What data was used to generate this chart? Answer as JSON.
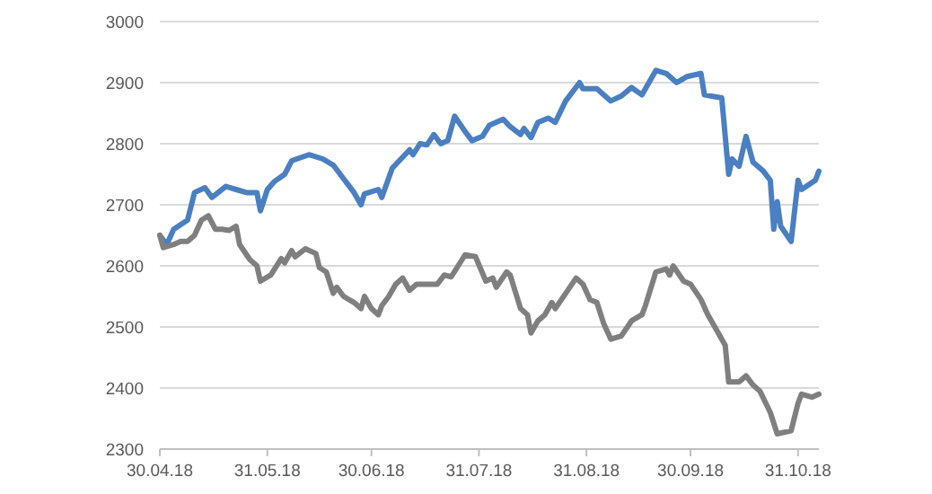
{
  "chart_data": {
    "type": "line",
    "xlim": [
      "2018-04-30",
      "2018-11-06"
    ],
    "xticks": [
      {
        "value": "2018-04-30",
        "label": "30.04.18"
      },
      {
        "value": "2018-05-31",
        "label": "31.05.18"
      },
      {
        "value": "2018-06-30",
        "label": "30.06.18"
      },
      {
        "value": "2018-07-31",
        "label": "31.07.18"
      },
      {
        "value": "2018-08-31",
        "label": "31.08.18"
      },
      {
        "value": "2018-09-30",
        "label": "30.09.18"
      },
      {
        "value": "2018-10-31",
        "label": "31.10.18"
      }
    ],
    "ylim": [
      2300,
      3000
    ],
    "yticks": [
      2300,
      2400,
      2500,
      2600,
      2700,
      2800,
      2900,
      3000
    ],
    "grid": "y",
    "series": [
      {
        "color": "#4a7fc1",
        "x": [
          "2018-04-30",
          "2018-05-02",
          "2018-05-04",
          "2018-05-08",
          "2018-05-10",
          "2018-05-13",
          "2018-05-15",
          "2018-05-19",
          "2018-05-22",
          "2018-05-25",
          "2018-05-28",
          "2018-05-29",
          "2018-05-31",
          "2018-06-02",
          "2018-06-05",
          "2018-06-07",
          "2018-06-12",
          "2018-06-16",
          "2018-06-19",
          "2018-06-21",
          "2018-06-25",
          "2018-06-27",
          "2018-06-28",
          "2018-07-02",
          "2018-07-03",
          "2018-07-06",
          "2018-07-09",
          "2018-07-11",
          "2018-07-12",
          "2018-07-14",
          "2018-07-16",
          "2018-07-18",
          "2018-07-20",
          "2018-07-22",
          "2018-07-24",
          "2018-07-27",
          "2018-07-29",
          "2018-08-01",
          "2018-08-03",
          "2018-08-07",
          "2018-08-09",
          "2018-08-12",
          "2018-08-13",
          "2018-08-15",
          "2018-08-17",
          "2018-08-20",
          "2018-08-22",
          "2018-08-25",
          "2018-08-29",
          "2018-08-30",
          "2018-09-03",
          "2018-09-07",
          "2018-09-10",
          "2018-09-13",
          "2018-09-16",
          "2018-09-20",
          "2018-09-23",
          "2018-09-26",
          "2018-09-29",
          "2018-10-03",
          "2018-10-04",
          "2018-10-09",
          "2018-10-11",
          "2018-10-12",
          "2018-10-14",
          "2018-10-16",
          "2018-10-18",
          "2018-10-21",
          "2018-10-23",
          "2018-10-24",
          "2018-10-25",
          "2018-10-26",
          "2018-10-29",
          "2018-10-31",
          "2018-11-01",
          "2018-11-05",
          "2018-11-06"
        ],
        "values": [
          2650,
          2635,
          2660,
          2675,
          2720,
          2728,
          2712,
          2730,
          2725,
          2720,
          2720,
          2690,
          2725,
          2738,
          2750,
          2772,
          2782,
          2775,
          2765,
          2750,
          2720,
          2700,
          2718,
          2725,
          2712,
          2760,
          2778,
          2790,
          2782,
          2800,
          2798,
          2815,
          2800,
          2805,
          2845,
          2820,
          2805,
          2812,
          2830,
          2840,
          2828,
          2815,
          2825,
          2810,
          2835,
          2842,
          2835,
          2870,
          2900,
          2890,
          2890,
          2870,
          2878,
          2892,
          2880,
          2920,
          2915,
          2900,
          2910,
          2915,
          2880,
          2875,
          2750,
          2775,
          2763,
          2812,
          2770,
          2755,
          2740,
          2660,
          2705,
          2665,
          2640,
          2740,
          2725,
          2740,
          2755
        ]
      },
      {
        "color": "#7f7f7f",
        "x": [
          "2018-04-30",
          "2018-05-01",
          "2018-05-04",
          "2018-05-06",
          "2018-05-08",
          "2018-05-10",
          "2018-05-12",
          "2018-05-14",
          "2018-05-16",
          "2018-05-18",
          "2018-05-20",
          "2018-05-22",
          "2018-05-23",
          "2018-05-26",
          "2018-05-28",
          "2018-05-29",
          "2018-06-01",
          "2018-06-04",
          "2018-06-05",
          "2018-06-07",
          "2018-06-08",
          "2018-06-11",
          "2018-06-14",
          "2018-06-15",
          "2018-06-17",
          "2018-06-19",
          "2018-06-20",
          "2018-06-22",
          "2018-06-25",
          "2018-06-27",
          "2018-06-28",
          "2018-06-30",
          "2018-07-02",
          "2018-07-03",
          "2018-07-05",
          "2018-07-07",
          "2018-07-09",
          "2018-07-11",
          "2018-07-13",
          "2018-07-19",
          "2018-07-21",
          "2018-07-23",
          "2018-07-25",
          "2018-07-27",
          "2018-07-30",
          "2018-08-02",
          "2018-08-04",
          "2018-08-05",
          "2018-08-08",
          "2018-08-09",
          "2018-08-12",
          "2018-08-14",
          "2018-08-15",
          "2018-08-17",
          "2018-08-19",
          "2018-08-21",
          "2018-08-22",
          "2018-08-25",
          "2018-08-28",
          "2018-08-30",
          "2018-09-01",
          "2018-09-03",
          "2018-09-05",
          "2018-09-07",
          "2018-09-10",
          "2018-09-13",
          "2018-09-16",
          "2018-09-17",
          "2018-09-20",
          "2018-09-23",
          "2018-09-24",
          "2018-09-25",
          "2018-09-28",
          "2018-09-30",
          "2018-10-03",
          "2018-10-05",
          "2018-10-08",
          "2018-10-10",
          "2018-10-11",
          "2018-10-14",
          "2018-10-16",
          "2018-10-18",
          "2018-10-20",
          "2018-10-23",
          "2018-10-25",
          "2018-10-29",
          "2018-10-31",
          "2018-11-01",
          "2018-11-04",
          "2018-11-06"
        ],
        "values": [
          2650,
          2630,
          2635,
          2640,
          2640,
          2650,
          2675,
          2682,
          2660,
          2660,
          2658,
          2665,
          2635,
          2610,
          2600,
          2575,
          2585,
          2612,
          2605,
          2625,
          2615,
          2628,
          2620,
          2597,
          2590,
          2555,
          2565,
          2550,
          2540,
          2530,
          2550,
          2530,
          2520,
          2535,
          2550,
          2570,
          2580,
          2560,
          2570,
          2570,
          2585,
          2582,
          2600,
          2618,
          2615,
          2575,
          2580,
          2565,
          2590,
          2585,
          2530,
          2520,
          2490,
          2510,
          2520,
          2540,
          2530,
          2555,
          2580,
          2570,
          2545,
          2540,
          2505,
          2480,
          2485,
          2510,
          2520,
          2535,
          2590,
          2595,
          2585,
          2600,
          2575,
          2570,
          2545,
          2520,
          2490,
          2470,
          2410,
          2410,
          2420,
          2405,
          2395,
          2360,
          2325,
          2330,
          2375,
          2390,
          2385,
          2390
        ]
      }
    ]
  }
}
